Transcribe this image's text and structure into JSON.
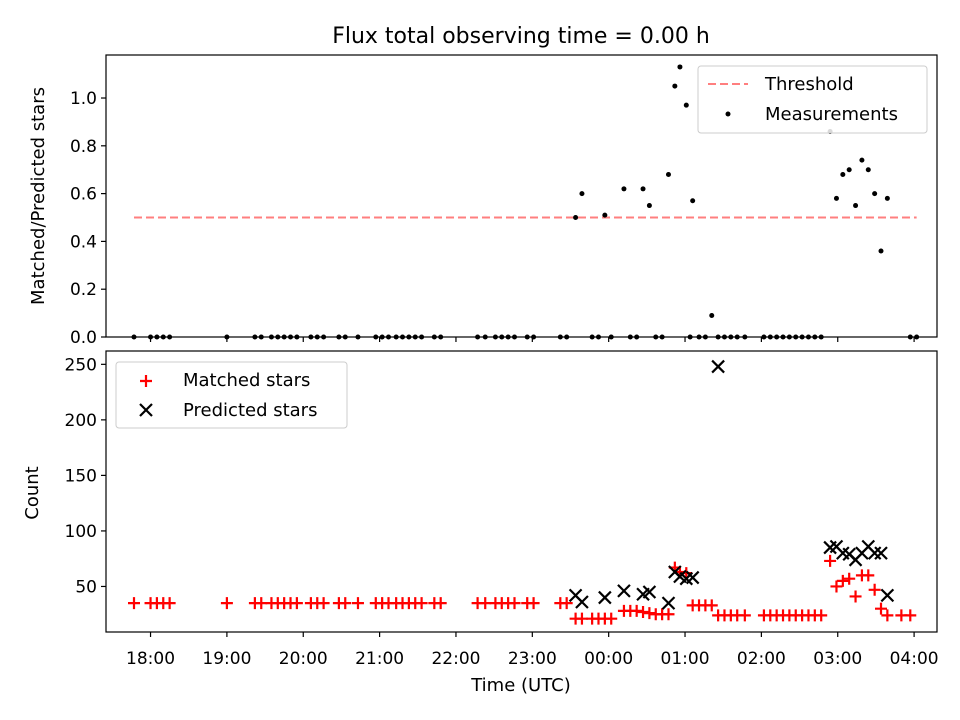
{
  "figure": {
    "title": "Flux total observing time = 0.00 h",
    "xlabel": "Time (UTC)"
  },
  "chart_data": [
    {
      "type": "scatter",
      "panel": "top",
      "ylabel": "Matched/Predicted stars",
      "ylim": [
        0,
        1.18
      ],
      "yticks": [
        0.0,
        0.2,
        0.4,
        0.6,
        0.8,
        1.0
      ],
      "xlim": [
        "17:25",
        "04:18"
      ],
      "legend": {
        "placement": "top-right",
        "entries": [
          "Threshold",
          "Measurements"
        ]
      },
      "threshold": {
        "name": "Threshold",
        "value": 0.5,
        "x_start": "17:47",
        "x_end": "04:02",
        "color": "#ff7f7f",
        "style": "dashed"
      },
      "series": [
        {
          "name": "Measurements",
          "color": "#000000",
          "points": [
            [
              "17:47",
              0
            ],
            [
              "18:00",
              0
            ],
            [
              "18:05",
              0
            ],
            [
              "18:10",
              0
            ],
            [
              "18:15",
              0
            ],
            [
              "19:00",
              0
            ],
            [
              "19:22",
              0
            ],
            [
              "19:27",
              0
            ],
            [
              "19:35",
              0
            ],
            [
              "19:40",
              0
            ],
            [
              "19:45",
              0
            ],
            [
              "19:50",
              0
            ],
            [
              "19:55",
              0
            ],
            [
              "20:06",
              0
            ],
            [
              "20:11",
              0
            ],
            [
              "20:16",
              0
            ],
            [
              "20:28",
              0
            ],
            [
              "20:33",
              0
            ],
            [
              "20:43",
              0
            ],
            [
              "20:57",
              0
            ],
            [
              "21:02",
              0
            ],
            [
              "21:07",
              0
            ],
            [
              "21:13",
              0
            ],
            [
              "21:18",
              0
            ],
            [
              "21:23",
              0
            ],
            [
              "21:28",
              0
            ],
            [
              "21:33",
              0
            ],
            [
              "21:43",
              0
            ],
            [
              "21:48",
              0
            ],
            [
              "22:17",
              0
            ],
            [
              "22:23",
              0
            ],
            [
              "22:31",
              0
            ],
            [
              "22:36",
              0
            ],
            [
              "22:41",
              0
            ],
            [
              "22:46",
              0
            ],
            [
              "22:56",
              0
            ],
            [
              "23:01",
              0
            ],
            [
              "23:22",
              0
            ],
            [
              "23:27",
              0
            ],
            [
              "23:34",
              0.5
            ],
            [
              "23:39",
              0.6
            ],
            [
              "23:47",
              0
            ],
            [
              "23:52",
              0
            ],
            [
              "23:57",
              0.51
            ],
            [
              "00:02",
              0
            ],
            [
              "00:12",
              0.62
            ],
            [
              "00:17",
              0
            ],
            [
              "00:22",
              0
            ],
            [
              "00:27",
              0.62
            ],
            [
              "00:32",
              0.55
            ],
            [
              "00:37",
              0
            ],
            [
              "00:42",
              0
            ],
            [
              "00:47",
              0.68
            ],
            [
              "00:52",
              1.05
            ],
            [
              "00:56",
              1.13
            ],
            [
              "01:01",
              0.97
            ],
            [
              "01:04",
              0
            ],
            [
              "01:06",
              0.57
            ],
            [
              "01:11",
              0
            ],
            [
              "01:16",
              0
            ],
            [
              "01:21",
              0.09
            ],
            [
              "01:26",
              0
            ],
            [
              "01:31",
              0
            ],
            [
              "01:36",
              0
            ],
            [
              "01:41",
              0
            ],
            [
              "01:47",
              0
            ],
            [
              "02:02",
              0
            ],
            [
              "02:07",
              0
            ],
            [
              "02:12",
              0
            ],
            [
              "02:17",
              0
            ],
            [
              "02:22",
              0
            ],
            [
              "02:27",
              0
            ],
            [
              "02:32",
              0
            ],
            [
              "02:37",
              0
            ],
            [
              "02:42",
              0
            ],
            [
              "02:47",
              0
            ],
            [
              "02:54",
              0.86
            ],
            [
              "02:59",
              0.58
            ],
            [
              "03:04",
              0.68
            ],
            [
              "03:09",
              0.7
            ],
            [
              "03:14",
              0.55
            ],
            [
              "03:19",
              0.74
            ],
            [
              "03:24",
              0.7
            ],
            [
              "03:29",
              0.6
            ],
            [
              "03:34",
              0.36
            ],
            [
              "03:39",
              0.58
            ],
            [
              "03:57",
              0
            ],
            [
              "04:02",
              0
            ]
          ]
        }
      ]
    },
    {
      "type": "scatter",
      "panel": "bottom",
      "ylabel": "Count",
      "ylim": [
        9,
        262
      ],
      "yticks": [
        50,
        100,
        150,
        200,
        250
      ],
      "xlim": [
        "17:25",
        "04:18"
      ],
      "xticks": [
        "18:00",
        "19:00",
        "20:00",
        "21:00",
        "22:00",
        "23:00",
        "00:00",
        "01:00",
        "02:00",
        "03:00",
        "04:00"
      ],
      "legend": {
        "placement": "top-left",
        "entries": [
          "Matched stars",
          "Predicted stars"
        ]
      },
      "series": [
        {
          "name": "Matched stars",
          "color": "#ff0000",
          "marker": "plus",
          "points": [
            [
              "17:47",
              35
            ],
            [
              "18:00",
              35
            ],
            [
              "18:05",
              35
            ],
            [
              "18:10",
              35
            ],
            [
              "18:15",
              35
            ],
            [
              "19:00",
              35
            ],
            [
              "19:22",
              35
            ],
            [
              "19:27",
              35
            ],
            [
              "19:35",
              35
            ],
            [
              "19:40",
              35
            ],
            [
              "19:45",
              35
            ],
            [
              "19:50",
              35
            ],
            [
              "19:55",
              35
            ],
            [
              "20:06",
              35
            ],
            [
              "20:11",
              35
            ],
            [
              "20:16",
              35
            ],
            [
              "20:28",
              35
            ],
            [
              "20:33",
              35
            ],
            [
              "20:43",
              35
            ],
            [
              "20:57",
              35
            ],
            [
              "21:02",
              35
            ],
            [
              "21:07",
              35
            ],
            [
              "21:13",
              35
            ],
            [
              "21:18",
              35
            ],
            [
              "21:23",
              35
            ],
            [
              "21:28",
              35
            ],
            [
              "21:33",
              35
            ],
            [
              "21:43",
              35
            ],
            [
              "21:48",
              35
            ],
            [
              "22:17",
              35
            ],
            [
              "22:23",
              35
            ],
            [
              "22:31",
              35
            ],
            [
              "22:36",
              35
            ],
            [
              "22:41",
              35
            ],
            [
              "22:46",
              35
            ],
            [
              "22:56",
              35
            ],
            [
              "23:01",
              35
            ],
            [
              "23:22",
              35
            ],
            [
              "23:27",
              35
            ],
            [
              "23:34",
              21
            ],
            [
              "23:39",
              21
            ],
            [
              "23:47",
              21
            ],
            [
              "23:52",
              21
            ],
            [
              "23:57",
              21
            ],
            [
              "00:02",
              21
            ],
            [
              "00:12",
              28
            ],
            [
              "00:17",
              28
            ],
            [
              "00:22",
              28
            ],
            [
              "00:27",
              27
            ],
            [
              "00:32",
              26
            ],
            [
              "00:37",
              25
            ],
            [
              "00:42",
              25
            ],
            [
              "00:47",
              25
            ],
            [
              "00:52",
              67
            ],
            [
              "00:56",
              63
            ],
            [
              "01:01",
              62
            ],
            [
              "01:06",
              33
            ],
            [
              "01:11",
              33
            ],
            [
              "01:16",
              33
            ],
            [
              "01:21",
              33
            ],
            [
              "01:26",
              24
            ],
            [
              "01:31",
              24
            ],
            [
              "01:36",
              24
            ],
            [
              "01:41",
              24
            ],
            [
              "01:47",
              24
            ],
            [
              "02:02",
              24
            ],
            [
              "02:07",
              24
            ],
            [
              "02:12",
              24
            ],
            [
              "02:17",
              24
            ],
            [
              "02:22",
              24
            ],
            [
              "02:27",
              24
            ],
            [
              "02:32",
              24
            ],
            [
              "02:37",
              24
            ],
            [
              "02:42",
              24
            ],
            [
              "02:47",
              24
            ],
            [
              "02:54",
              73
            ],
            [
              "02:59",
              50
            ],
            [
              "03:04",
              55
            ],
            [
              "03:09",
              57
            ],
            [
              "03:14",
              41
            ],
            [
              "03:19",
              60
            ],
            [
              "03:24",
              60
            ],
            [
              "03:29",
              47
            ],
            [
              "03:34",
              30
            ],
            [
              "03:39",
              24
            ],
            [
              "03:50",
              24
            ],
            [
              "03:57",
              24
            ]
          ]
        },
        {
          "name": "Predicted stars",
          "color": "#000000",
          "marker": "x",
          "points": [
            [
              "23:34",
              42
            ],
            [
              "23:39",
              36
            ],
            [
              "23:57",
              40
            ],
            [
              "00:12",
              46
            ],
            [
              "00:27",
              43
            ],
            [
              "00:32",
              45
            ],
            [
              "00:47",
              35
            ],
            [
              "00:52",
              63
            ],
            [
              "00:56",
              59
            ],
            [
              "01:01",
              57
            ],
            [
              "01:06",
              58
            ],
            [
              "01:26",
              248
            ],
            [
              "02:54",
              85
            ],
            [
              "02:59",
              86
            ],
            [
              "03:04",
              80
            ],
            [
              "03:09",
              79
            ],
            [
              "03:14",
              74
            ],
            [
              "03:19",
              80
            ],
            [
              "03:24",
              86
            ],
            [
              "03:29",
              80
            ],
            [
              "03:34",
              80
            ],
            [
              "03:39",
              42
            ]
          ]
        }
      ]
    }
  ]
}
